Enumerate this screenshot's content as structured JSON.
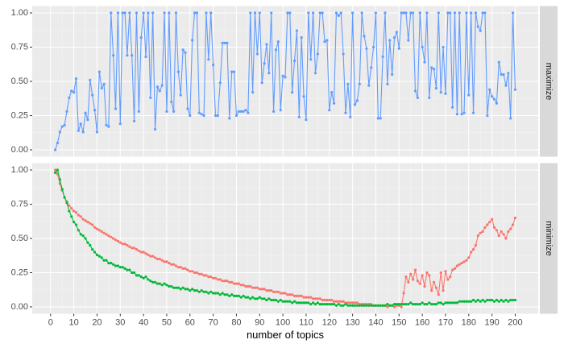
{
  "chart_data": [
    {
      "type": "line",
      "facet": "maximize",
      "x": [
        2,
        3,
        4,
        5,
        6,
        7,
        8,
        9,
        10,
        11,
        12,
        13,
        14,
        15,
        16,
        17,
        18,
        19,
        20,
        21,
        22,
        23,
        24,
        25,
        26,
        27,
        28,
        29,
        30,
        31,
        32,
        33,
        34,
        35,
        36,
        37,
        38,
        39,
        40,
        41,
        42,
        43,
        44,
        45,
        46,
        47,
        48,
        49,
        50,
        51,
        52,
        53,
        54,
        55,
        56,
        57,
        58,
        59,
        60,
        61,
        62,
        63,
        64,
        65,
        66,
        67,
        68,
        69,
        70,
        71,
        72,
        73,
        74,
        75,
        76,
        77,
        78,
        79,
        80,
        81,
        82,
        83,
        84,
        85,
        86,
        87,
        88,
        89,
        90,
        91,
        92,
        93,
        94,
        95,
        96,
        97,
        98,
        99,
        100,
        101,
        102,
        103,
        104,
        105,
        106,
        107,
        108,
        109,
        110,
        111,
        112,
        113,
        114,
        115,
        116,
        117,
        118,
        119,
        120,
        121,
        122,
        123,
        124,
        125,
        126,
        127,
        128,
        129,
        130,
        131,
        132,
        133,
        134,
        135,
        136,
        137,
        138,
        139,
        140,
        141,
        142,
        143,
        144,
        145,
        146,
        147,
        148,
        149,
        150,
        151,
        152,
        153,
        154,
        155,
        156,
        157,
        158,
        159,
        160,
        161,
        162,
        163,
        164,
        165,
        166,
        167,
        168,
        169,
        170,
        171,
        172,
        173,
        174,
        175,
        176,
        177,
        178,
        179,
        180,
        181,
        182,
        183,
        184,
        185,
        186,
        187,
        188,
        189,
        190,
        191,
        192,
        193,
        194,
        195,
        196,
        197,
        198,
        199,
        200
      ],
      "series": [
        {
          "color": "#619CFF",
          "values": [
            0,
            0.05,
            0.13,
            0.17,
            0.18,
            0.28,
            0.38,
            0.43,
            0.42,
            0.52,
            0.14,
            0.19,
            0.13,
            0.27,
            0.22,
            0.51,
            0.4,
            0.29,
            0.13,
            0.57,
            0.45,
            0.48,
            0.18,
            0.17,
            1,
            0.69,
            0.3,
            1,
            0.19,
            1,
            1,
            0.69,
            1,
            0.69,
            0.21,
            1,
            0.28,
            0.82,
            1,
            0.68,
            1,
            0.38,
            1,
            0.15,
            0.46,
            0.43,
            0.47,
            1,
            0.28,
            1,
            0.35,
            0.28,
            1,
            0.57,
            0.4,
            0.73,
            0.71,
            0.3,
            0.25,
            0.8,
            1,
            1,
            0.27,
            0.26,
            0.25,
            1,
            0.66,
            1,
            0.62,
            0.25,
            0.25,
            0.49,
            0.78,
            0.78,
            0.78,
            0.23,
            0.57,
            0.57,
            0.25,
            0.28,
            0.28,
            0.28,
            0.29,
            0.27,
            1,
            0.42,
            1,
            0.7,
            1,
            0.49,
            0.63,
            0.77,
            0.56,
            1,
            0.28,
            0.73,
            0.79,
            0.29,
            0.54,
            0.53,
            1,
            1,
            0.42,
            0.65,
            0.87,
            0.24,
            0.82,
            0.39,
            0.22,
            1,
            0.66,
            1,
            0.56,
            0.7,
            1,
            1,
            0.79,
            0.8,
            0.29,
            0.42,
            0.34,
            1,
            0.98,
            1,
            0.7,
            0.27,
            0.48,
            0.24,
            1,
            0.33,
            0.36,
            0.48,
            1,
            0.83,
            0.74,
            0.47,
            0.6,
            0.75,
            1,
            0.23,
            0.23,
            0.68,
            1,
            0.48,
            0.8,
            0.55,
            0.82,
            0.86,
            0.74,
            1,
            1,
            1,
            0.8,
            1,
            1,
            0.43,
            0.38,
            1,
            0.75,
            0.64,
            1,
            0.38,
            0.6,
            0.59,
            0.45,
            1,
            0.42,
            0.75,
            0.41,
            1,
            1,
            0.31,
            1,
            0.26,
            1,
            0.26,
            0.27,
            1,
            0.4,
            1,
            0.27,
            1,
            0.9,
            0.87,
            1,
            1,
            0.25,
            0.44,
            0.39,
            0.37,
            0.34,
            0.64,
            0.55,
            0.55,
            0.47,
            0.56,
            0.23,
            1,
            0.44
          ]
        }
      ],
      "xlim": [
        -7.9,
        209.9
      ],
      "xticks": [
        0,
        10,
        20,
        30,
        40,
        50,
        60,
        70,
        80,
        90,
        100,
        110,
        120,
        130,
        140,
        150,
        160,
        170,
        180,
        190,
        200
      ],
      "ylim": [
        -0.05,
        1.05
      ],
      "yticks": [
        {
          "value": 0,
          "label": "0.00"
        },
        {
          "value": 0.25,
          "label": "0.25"
        },
        {
          "value": 0.5,
          "label": "0.50"
        },
        {
          "value": 0.75,
          "label": "0.75"
        },
        {
          "value": 1,
          "label": "1.00"
        }
      ],
      "grid": true
    },
    {
      "type": "line",
      "facet": "minimize",
      "x_label": "number of topics",
      "x": [
        2,
        3,
        4,
        5,
        6,
        7,
        8,
        9,
        10,
        11,
        12,
        13,
        14,
        15,
        16,
        17,
        18,
        19,
        20,
        21,
        22,
        23,
        24,
        25,
        26,
        27,
        28,
        29,
        30,
        31,
        32,
        33,
        34,
        35,
        36,
        37,
        38,
        39,
        40,
        41,
        42,
        43,
        44,
        45,
        46,
        47,
        48,
        49,
        50,
        51,
        52,
        53,
        54,
        55,
        56,
        57,
        58,
        59,
        60,
        61,
        62,
        63,
        64,
        65,
        66,
        67,
        68,
        69,
        70,
        71,
        72,
        73,
        74,
        75,
        76,
        77,
        78,
        79,
        80,
        81,
        82,
        83,
        84,
        85,
        86,
        87,
        88,
        89,
        90,
        91,
        92,
        93,
        94,
        95,
        96,
        97,
        98,
        99,
        100,
        101,
        102,
        103,
        104,
        105,
        106,
        107,
        108,
        109,
        110,
        111,
        112,
        113,
        114,
        115,
        116,
        117,
        118,
        119,
        120,
        121,
        122,
        123,
        124,
        125,
        126,
        127,
        128,
        129,
        130,
        131,
        132,
        133,
        134,
        135,
        136,
        137,
        138,
        139,
        140,
        141,
        142,
        143,
        144,
        145,
        146,
        147,
        148,
        149,
        150,
        151,
        152,
        153,
        154,
        155,
        156,
        157,
        158,
        159,
        160,
        161,
        162,
        163,
        164,
        165,
        166,
        167,
        168,
        169,
        170,
        171,
        172,
        173,
        174,
        175,
        176,
        177,
        178,
        179,
        180,
        181,
        182,
        183,
        184,
        185,
        186,
        187,
        188,
        189,
        190,
        191,
        192,
        193,
        194,
        195,
        196,
        197,
        198,
        199,
        200
      ],
      "series": [
        {
          "color": "#F8766D",
          "values": [
            1,
            0.97,
            0.9,
            0.85,
            0.8,
            0.77,
            0.74,
            0.72,
            0.7,
            0.69,
            0.67,
            0.66,
            0.64,
            0.63,
            0.62,
            0.61,
            0.6,
            0.58,
            0.57,
            0.56,
            0.55,
            0.54,
            0.53,
            0.52,
            0.51,
            0.5,
            0.49,
            0.48,
            0.47,
            0.46,
            0.46,
            0.45,
            0.44,
            0.43,
            0.43,
            0.42,
            0.41,
            0.4,
            0.4,
            0.39,
            0.38,
            0.37,
            0.37,
            0.36,
            0.35,
            0.35,
            0.34,
            0.33,
            0.33,
            0.32,
            0.31,
            0.31,
            0.3,
            0.29,
            0.29,
            0.28,
            0.28,
            0.27,
            0.26,
            0.26,
            0.25,
            0.25,
            0.24,
            0.24,
            0.23,
            0.23,
            0.22,
            0.22,
            0.21,
            0.21,
            0.2,
            0.2,
            0.19,
            0.19,
            0.19,
            0.18,
            0.18,
            0.17,
            0.17,
            0.17,
            0.16,
            0.16,
            0.15,
            0.15,
            0.15,
            0.14,
            0.14,
            0.14,
            0.13,
            0.13,
            0.13,
            0.12,
            0.12,
            0.12,
            0.11,
            0.11,
            0.11,
            0.1,
            0.1,
            0.1,
            0.09,
            0.09,
            0.09,
            0.08,
            0.08,
            0.08,
            0.08,
            0.07,
            0.07,
            0.07,
            0.07,
            0.06,
            0.06,
            0.06,
            0.06,
            0.05,
            0.05,
            0.05,
            0.05,
            0.05,
            0.04,
            0.04,
            0.04,
            0.04,
            0.04,
            0.03,
            0.03,
            0.03,
            0.03,
            0.03,
            0.03,
            0.02,
            0.02,
            0.02,
            0.02,
            0.02,
            0.02,
            0.01,
            0.01,
            0.01,
            0.01,
            0.01,
            0.01,
            0,
            0.01,
            0.01,
            0,
            0.01,
            0.01,
            0,
            0.1,
            0.22,
            0.18,
            0.24,
            0.2,
            0.27,
            0.19,
            0.17,
            0.23,
            0.15,
            0.25,
            0.23,
            0.12,
            0.18,
            0.14,
            0.09,
            0.25,
            0.12,
            0.26,
            0.2,
            0.22,
            0.27,
            0.28,
            0.3,
            0.31,
            0.32,
            0.33,
            0.34,
            0.36,
            0.4,
            0.42,
            0.45,
            0.52,
            0.54,
            0.55,
            0.58,
            0.6,
            0.62,
            0.64,
            0.58,
            0.56,
            0.52,
            0.55,
            0.53,
            0.5,
            0.55,
            0.57,
            0.6,
            0.65
          ]
        },
        {
          "color": "#00BA38",
          "values": [
            0.98,
            1,
            0.93,
            0.86,
            0.8,
            0.76,
            0.7,
            0.66,
            0.62,
            0.6,
            0.56,
            0.53,
            0.52,
            0.5,
            0.47,
            0.45,
            0.42,
            0.4,
            0.38,
            0.37,
            0.36,
            0.34,
            0.34,
            0.32,
            0.32,
            0.31,
            0.3,
            0.3,
            0.29,
            0.29,
            0.28,
            0.27,
            0.27,
            0.25,
            0.25,
            0.23,
            0.23,
            0.22,
            0.21,
            0.22,
            0.2,
            0.19,
            0.18,
            0.18,
            0.17,
            0.17,
            0.16,
            0.17,
            0.16,
            0.15,
            0.15,
            0.14,
            0.14,
            0.14,
            0.13,
            0.14,
            0.13,
            0.13,
            0.12,
            0.13,
            0.12,
            0.12,
            0.11,
            0.12,
            0.11,
            0.11,
            0.1,
            0.11,
            0.1,
            0.1,
            0.1,
            0.09,
            0.1,
            0.09,
            0.09,
            0.08,
            0.09,
            0.08,
            0.08,
            0.08,
            0.07,
            0.08,
            0.07,
            0.07,
            0.06,
            0.07,
            0.06,
            0.06,
            0.07,
            0.06,
            0.06,
            0.05,
            0.06,
            0.05,
            0.05,
            0.05,
            0.04,
            0.05,
            0.04,
            0.04,
            0.04,
            0.04,
            0.03,
            0.04,
            0.03,
            0.03,
            0.03,
            0.03,
            0.03,
            0.03,
            0.02,
            0.03,
            0.02,
            0.03,
            0.02,
            0.02,
            0.02,
            0.02,
            0.02,
            0.02,
            0.02,
            0.01,
            0.02,
            0.01,
            0.01,
            0.02,
            0.01,
            0.01,
            0.01,
            0.01,
            0.01,
            0.01,
            0.01,
            0.01,
            0.01,
            0.01,
            0.01,
            0.01,
            0.01,
            0.01,
            0.01,
            0.01,
            0.01,
            0.02,
            0.01,
            0.01,
            0.02,
            0.02,
            0.02,
            0.02,
            0.02,
            0.02,
            0.02,
            0.03,
            0.02,
            0.02,
            0.02,
            0.02,
            0.03,
            0.02,
            0.02,
            0.03,
            0.02,
            0.02,
            0.02,
            0.03,
            0.03,
            0.02,
            0.03,
            0.03,
            0.03,
            0.03,
            0.03,
            0.03,
            0.04,
            0.04,
            0.04,
            0.04,
            0.04,
            0.04,
            0.05,
            0.04,
            0.05,
            0.04,
            0.05,
            0.04,
            0.05,
            0.05,
            0.05,
            0.04,
            0.05,
            0.04,
            0.05,
            0.04,
            0.05,
            0.04,
            0.05,
            0.05,
            0.05
          ]
        }
      ],
      "xlim": [
        -7.9,
        209.9
      ],
      "xticks": [
        0,
        10,
        20,
        30,
        40,
        50,
        60,
        70,
        80,
        90,
        100,
        110,
        120,
        130,
        140,
        150,
        160,
        170,
        180,
        190,
        200
      ],
      "ylim": [
        -0.05,
        1.05
      ],
      "yticks": [
        {
          "value": 0,
          "label": "0.00"
        },
        {
          "value": 0.25,
          "label": "0.25"
        },
        {
          "value": 0.5,
          "label": "0.50"
        },
        {
          "value": 0.75,
          "label": "0.75"
        },
        {
          "value": 1,
          "label": "1.00"
        }
      ],
      "grid": true
    }
  ]
}
